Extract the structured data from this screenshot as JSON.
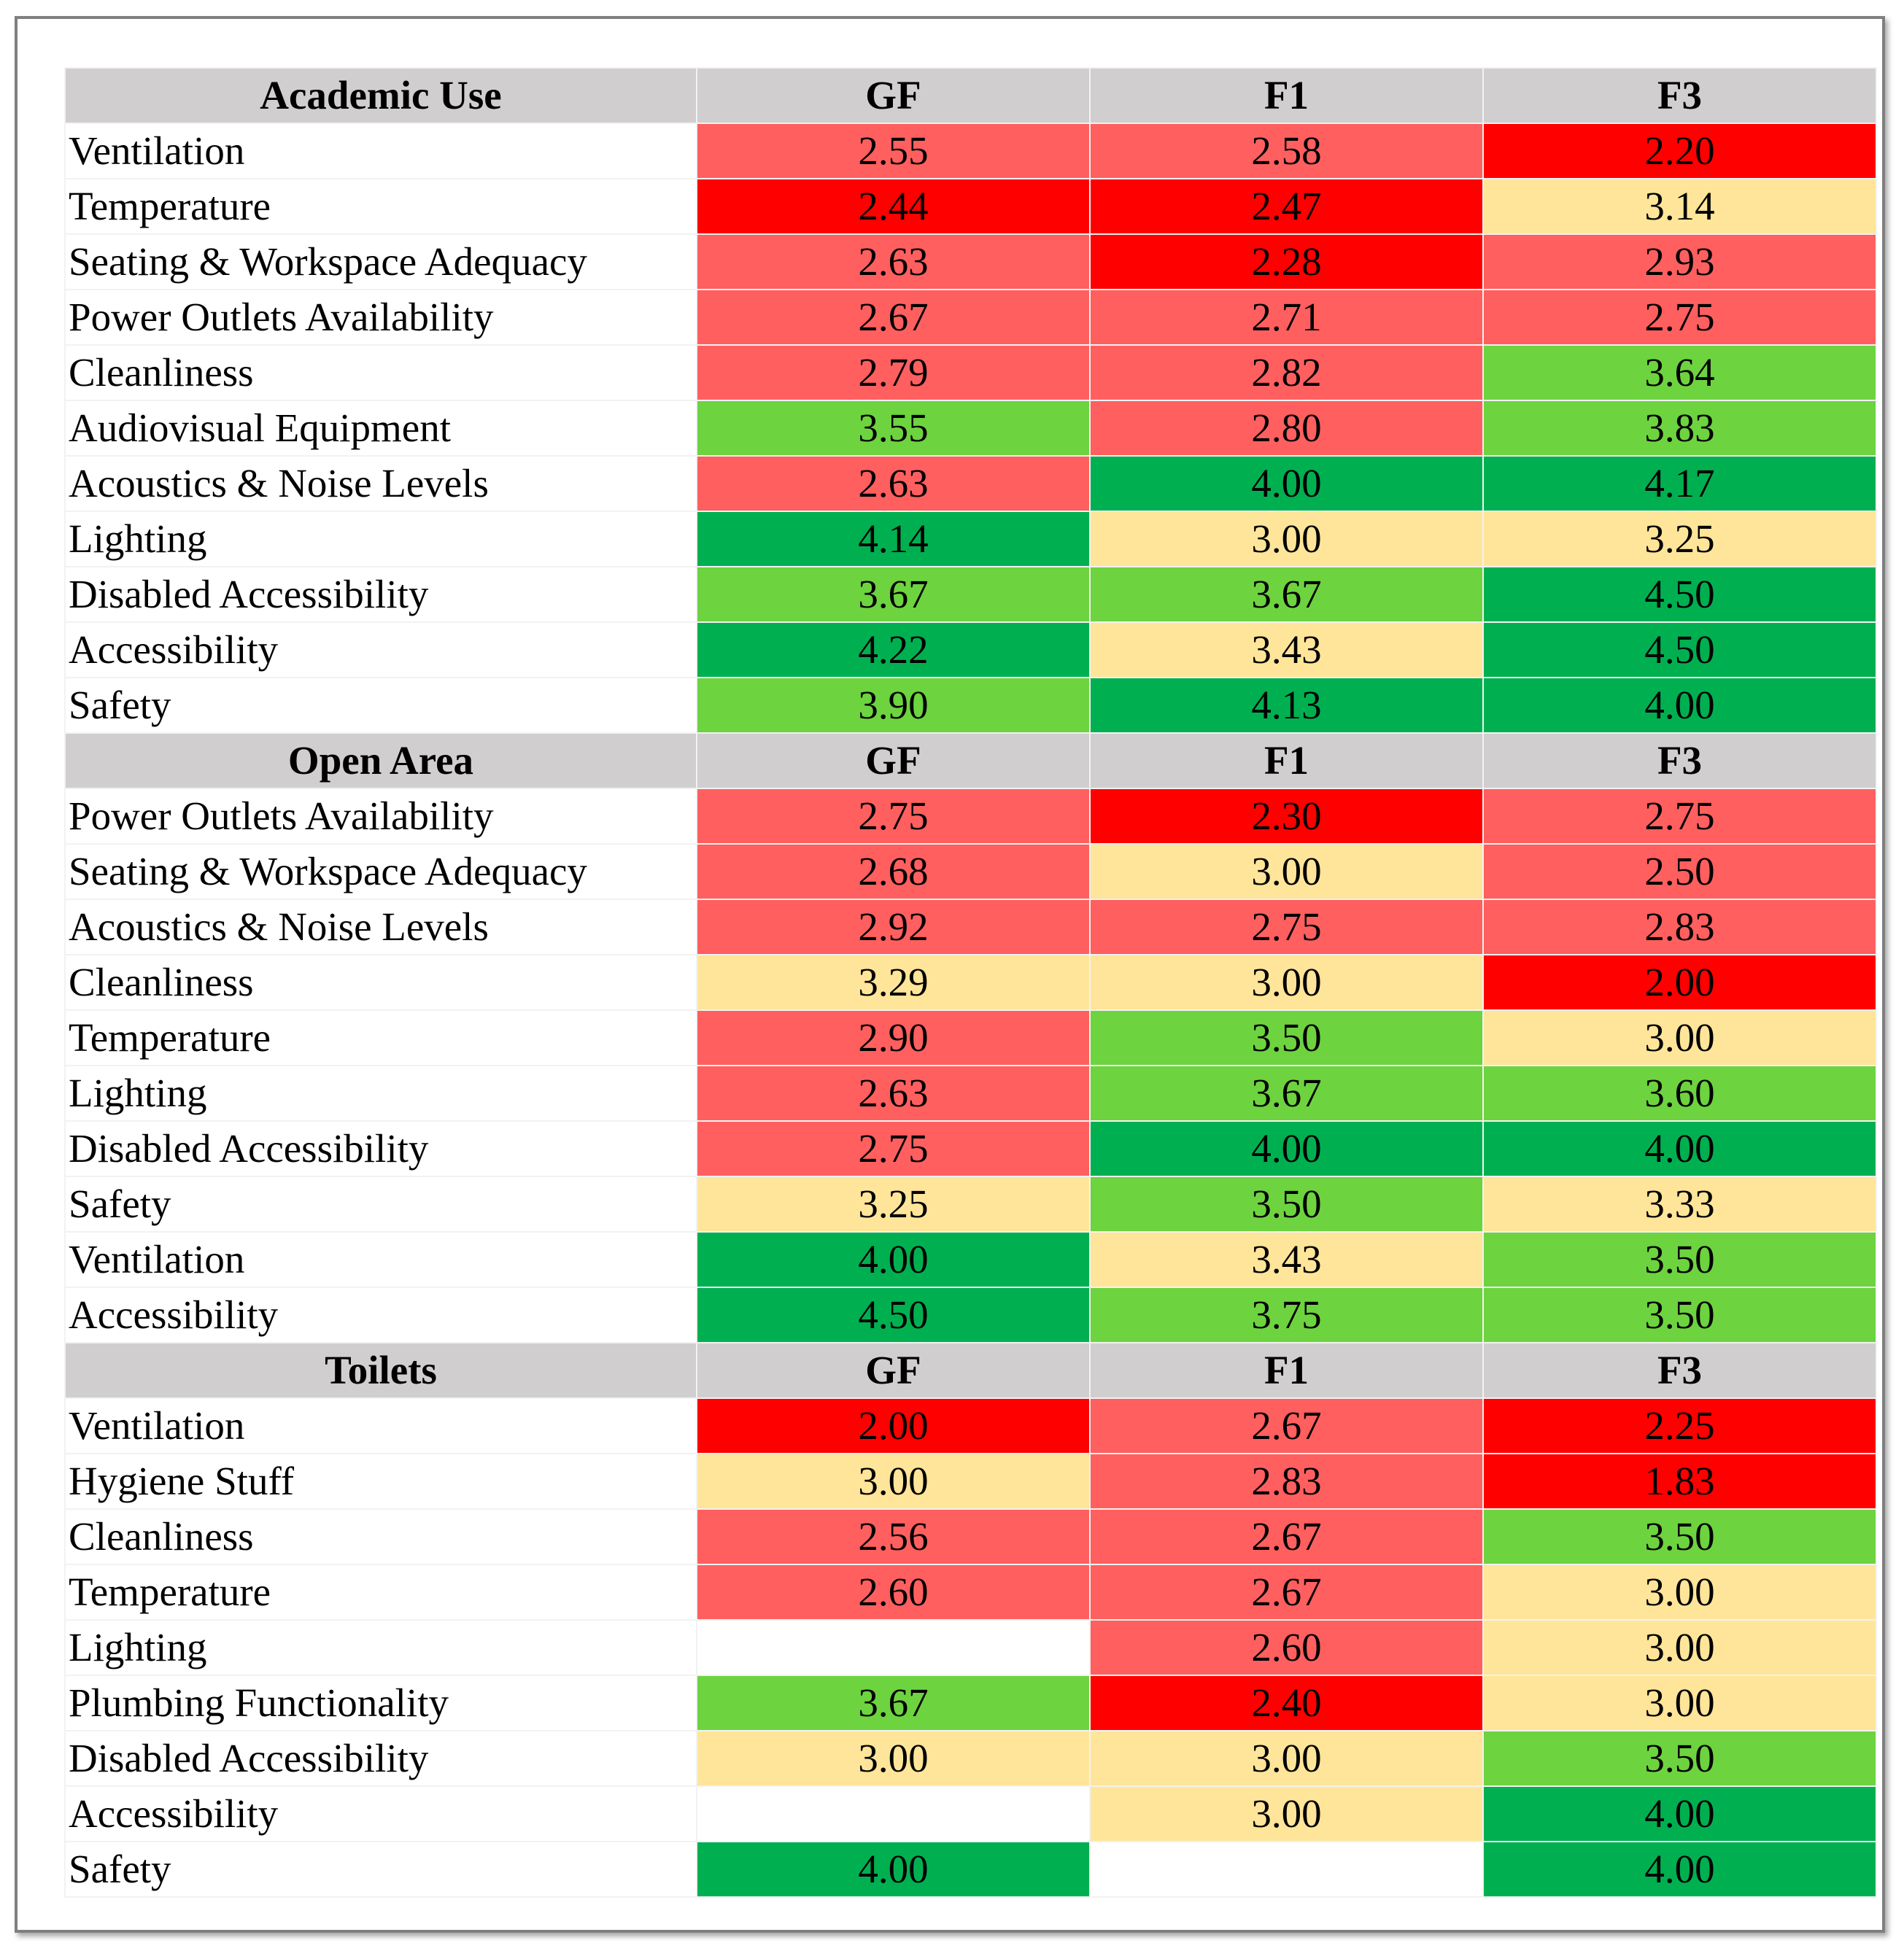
{
  "colors": {
    "header": "#d0cecf",
    "red": "#ff0000",
    "light_red": "#ff5f5f",
    "yellow": "#ffe599",
    "light_green": "#6dd33f",
    "green": "#00b050",
    "blank": "#ffffff"
  },
  "chart_data": {
    "type": "table",
    "columns": [
      "GF",
      "F1",
      "F3"
    ],
    "sections": [
      {
        "name": "Academic Use",
        "rows": [
          {
            "label": "Ventilation",
            "values": [
              "2.55",
              "2.58",
              "2.20"
            ],
            "fills": [
              "light_red",
              "light_red",
              "red"
            ]
          },
          {
            "label": "Temperature",
            "values": [
              "2.44",
              "2.47",
              "3.14"
            ],
            "fills": [
              "red",
              "red",
              "yellow"
            ]
          },
          {
            "label": "Seating & Workspace Adequacy",
            "values": [
              "2.63",
              "2.28",
              "2.93"
            ],
            "fills": [
              "light_red",
              "red",
              "light_red"
            ]
          },
          {
            "label": "Power Outlets Availability",
            "values": [
              "2.67",
              "2.71",
              "2.75"
            ],
            "fills": [
              "light_red",
              "light_red",
              "light_red"
            ]
          },
          {
            "label": "Cleanliness",
            "values": [
              "2.79",
              "2.82",
              "3.64"
            ],
            "fills": [
              "light_red",
              "light_red",
              "light_green"
            ]
          },
          {
            "label": "Audiovisual Equipment",
            "values": [
              "3.55",
              "2.80",
              "3.83"
            ],
            "fills": [
              "light_green",
              "light_red",
              "light_green"
            ]
          },
          {
            "label": "Acoustics & Noise Levels",
            "values": [
              "2.63",
              "4.00",
              "4.17"
            ],
            "fills": [
              "light_red",
              "green",
              "green"
            ]
          },
          {
            "label": "Lighting",
            "values": [
              "4.14",
              "3.00",
              "3.25"
            ],
            "fills": [
              "green",
              "yellow",
              "yellow"
            ]
          },
          {
            "label": "Disabled Accessibility",
            "values": [
              "3.67",
              "3.67",
              "4.50"
            ],
            "fills": [
              "light_green",
              "light_green",
              "green"
            ]
          },
          {
            "label": "Accessibility",
            "values": [
              "4.22",
              "3.43",
              "4.50"
            ],
            "fills": [
              "green",
              "yellow",
              "green"
            ]
          },
          {
            "label": "Safety",
            "values": [
              "3.90",
              "4.13",
              "4.00"
            ],
            "fills": [
              "light_green",
              "green",
              "green"
            ]
          }
        ]
      },
      {
        "name": "Open Area",
        "rows": [
          {
            "label": "Power Outlets Availability",
            "values": [
              "2.75",
              "2.30",
              "2.75"
            ],
            "fills": [
              "light_red",
              "red",
              "light_red"
            ]
          },
          {
            "label": "Seating & Workspace Adequacy",
            "values": [
              "2.68",
              "3.00",
              "2.50"
            ],
            "fills": [
              "light_red",
              "yellow",
              "light_red"
            ]
          },
          {
            "label": "Acoustics & Noise Levels",
            "values": [
              "2.92",
              "2.75",
              "2.83"
            ],
            "fills": [
              "light_red",
              "light_red",
              "light_red"
            ]
          },
          {
            "label": "Cleanliness",
            "values": [
              "3.29",
              "3.00",
              "2.00"
            ],
            "fills": [
              "yellow",
              "yellow",
              "red"
            ]
          },
          {
            "label": "Temperature",
            "values": [
              "2.90",
              "3.50",
              "3.00"
            ],
            "fills": [
              "light_red",
              "light_green",
              "yellow"
            ]
          },
          {
            "label": "Lighting",
            "values": [
              "2.63",
              "3.67",
              "3.60"
            ],
            "fills": [
              "light_red",
              "light_green",
              "light_green"
            ]
          },
          {
            "label": "Disabled Accessibility",
            "values": [
              "2.75",
              "4.00",
              "4.00"
            ],
            "fills": [
              "light_red",
              "green",
              "green"
            ]
          },
          {
            "label": "Safety",
            "values": [
              "3.25",
              "3.50",
              "3.33"
            ],
            "fills": [
              "yellow",
              "light_green",
              "yellow"
            ]
          },
          {
            "label": "Ventilation",
            "values": [
              "4.00",
              "3.43",
              "3.50"
            ],
            "fills": [
              "green",
              "yellow",
              "light_green"
            ]
          },
          {
            "label": "Accessibility",
            "values": [
              "4.50",
              "3.75",
              "3.50"
            ],
            "fills": [
              "green",
              "light_green",
              "light_green"
            ]
          }
        ]
      },
      {
        "name": "Toilets",
        "rows": [
          {
            "label": "Ventilation",
            "values": [
              "2.00",
              "2.67",
              "2.25"
            ],
            "fills": [
              "red",
              "light_red",
              "red"
            ]
          },
          {
            "label": "Hygiene Stuff",
            "values": [
              "3.00",
              "2.83",
              "1.83"
            ],
            "fills": [
              "yellow",
              "light_red",
              "red"
            ]
          },
          {
            "label": "Cleanliness",
            "values": [
              "2.56",
              "2.67",
              "3.50"
            ],
            "fills": [
              "light_red",
              "light_red",
              "light_green"
            ]
          },
          {
            "label": "Temperature",
            "values": [
              "2.60",
              "2.67",
              "3.00"
            ],
            "fills": [
              "light_red",
              "light_red",
              "yellow"
            ]
          },
          {
            "label": "Lighting",
            "values": [
              "",
              "2.60",
              "3.00"
            ],
            "fills": [
              "blank",
              "light_red",
              "yellow"
            ]
          },
          {
            "label": "Plumbing Functionality",
            "values": [
              "3.67",
              "2.40",
              "3.00"
            ],
            "fills": [
              "light_green",
              "red",
              "yellow"
            ]
          },
          {
            "label": "Disabled Accessibility",
            "values": [
              "3.00",
              "3.00",
              "3.50"
            ],
            "fills": [
              "yellow",
              "yellow",
              "light_green"
            ]
          },
          {
            "label": "Accessibility",
            "values": [
              "",
              "3.00",
              "4.00"
            ],
            "fills": [
              "blank",
              "yellow",
              "green"
            ]
          },
          {
            "label": "Safety",
            "values": [
              "4.00",
              "",
              "4.00"
            ],
            "fills": [
              "green",
              "blank",
              "green"
            ]
          }
        ]
      }
    ]
  }
}
